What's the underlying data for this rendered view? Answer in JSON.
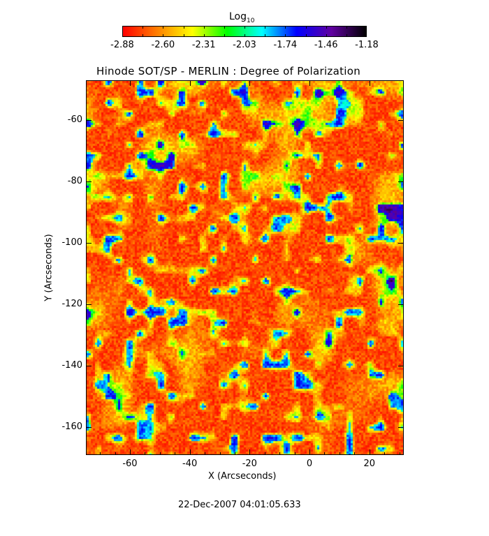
{
  "chart_data": {
    "type": "heatmap",
    "title": "Hinode SOT/SP - MERLIN : Degree of Polarization",
    "xlabel": "X (Arcseconds)",
    "ylabel": "Y (Arcseconds)",
    "xlim": [
      -74.7,
      31.5
    ],
    "ylim": [
      -169,
      -47
    ],
    "xticks": [
      "-60",
      "-40",
      "-20",
      "0",
      "20"
    ],
    "yticks": [
      "-60",
      "-80",
      "-100",
      "-120",
      "-140",
      "-160"
    ],
    "colorbar": {
      "label": "Log",
      "label_subscript": "10",
      "range": [
        -2.88,
        -1.18
      ],
      "ticks": [
        "-2.88",
        "-2.60",
        "-2.31",
        "-2.03",
        "-1.74",
        "-1.46",
        "-1.18"
      ],
      "colormap": [
        "#ff0000",
        "#ff8000",
        "#ffff00",
        "#00ff00",
        "#00ffff",
        "#0000ff",
        "#6000a0",
        "#000000"
      ],
      "position": "top"
    },
    "footer": "22-Dec-2007 04:01:05.633"
  }
}
